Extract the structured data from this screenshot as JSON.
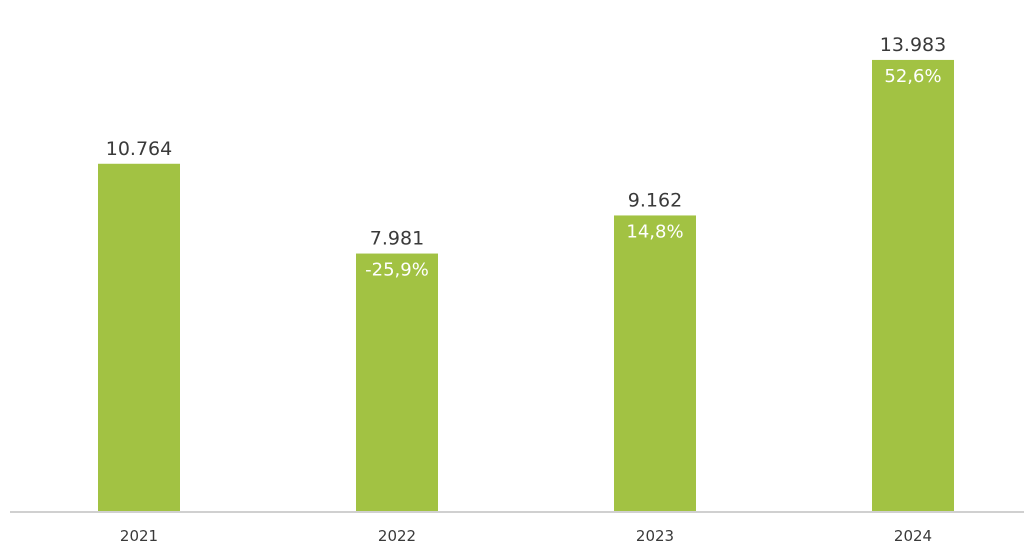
{
  "chart_data": {
    "type": "bar",
    "categories": [
      "2021",
      "2022",
      "2023",
      "2024"
    ],
    "values": [
      10764,
      7981,
      9162,
      13983
    ],
    "value_labels": [
      "10.764",
      "7.981",
      "9.162",
      "13.983"
    ],
    "change_labels": [
      "",
      "-25,9%",
      "14,8%",
      "52,6%"
    ],
    "ylim": [
      0,
      15500
    ],
    "grid": false,
    "legend": "none",
    "colors": {
      "bar": "#a2c243",
      "axis": "#d0d0d0",
      "text": "#3a3a3a",
      "change_text": "#ffffff"
    }
  }
}
